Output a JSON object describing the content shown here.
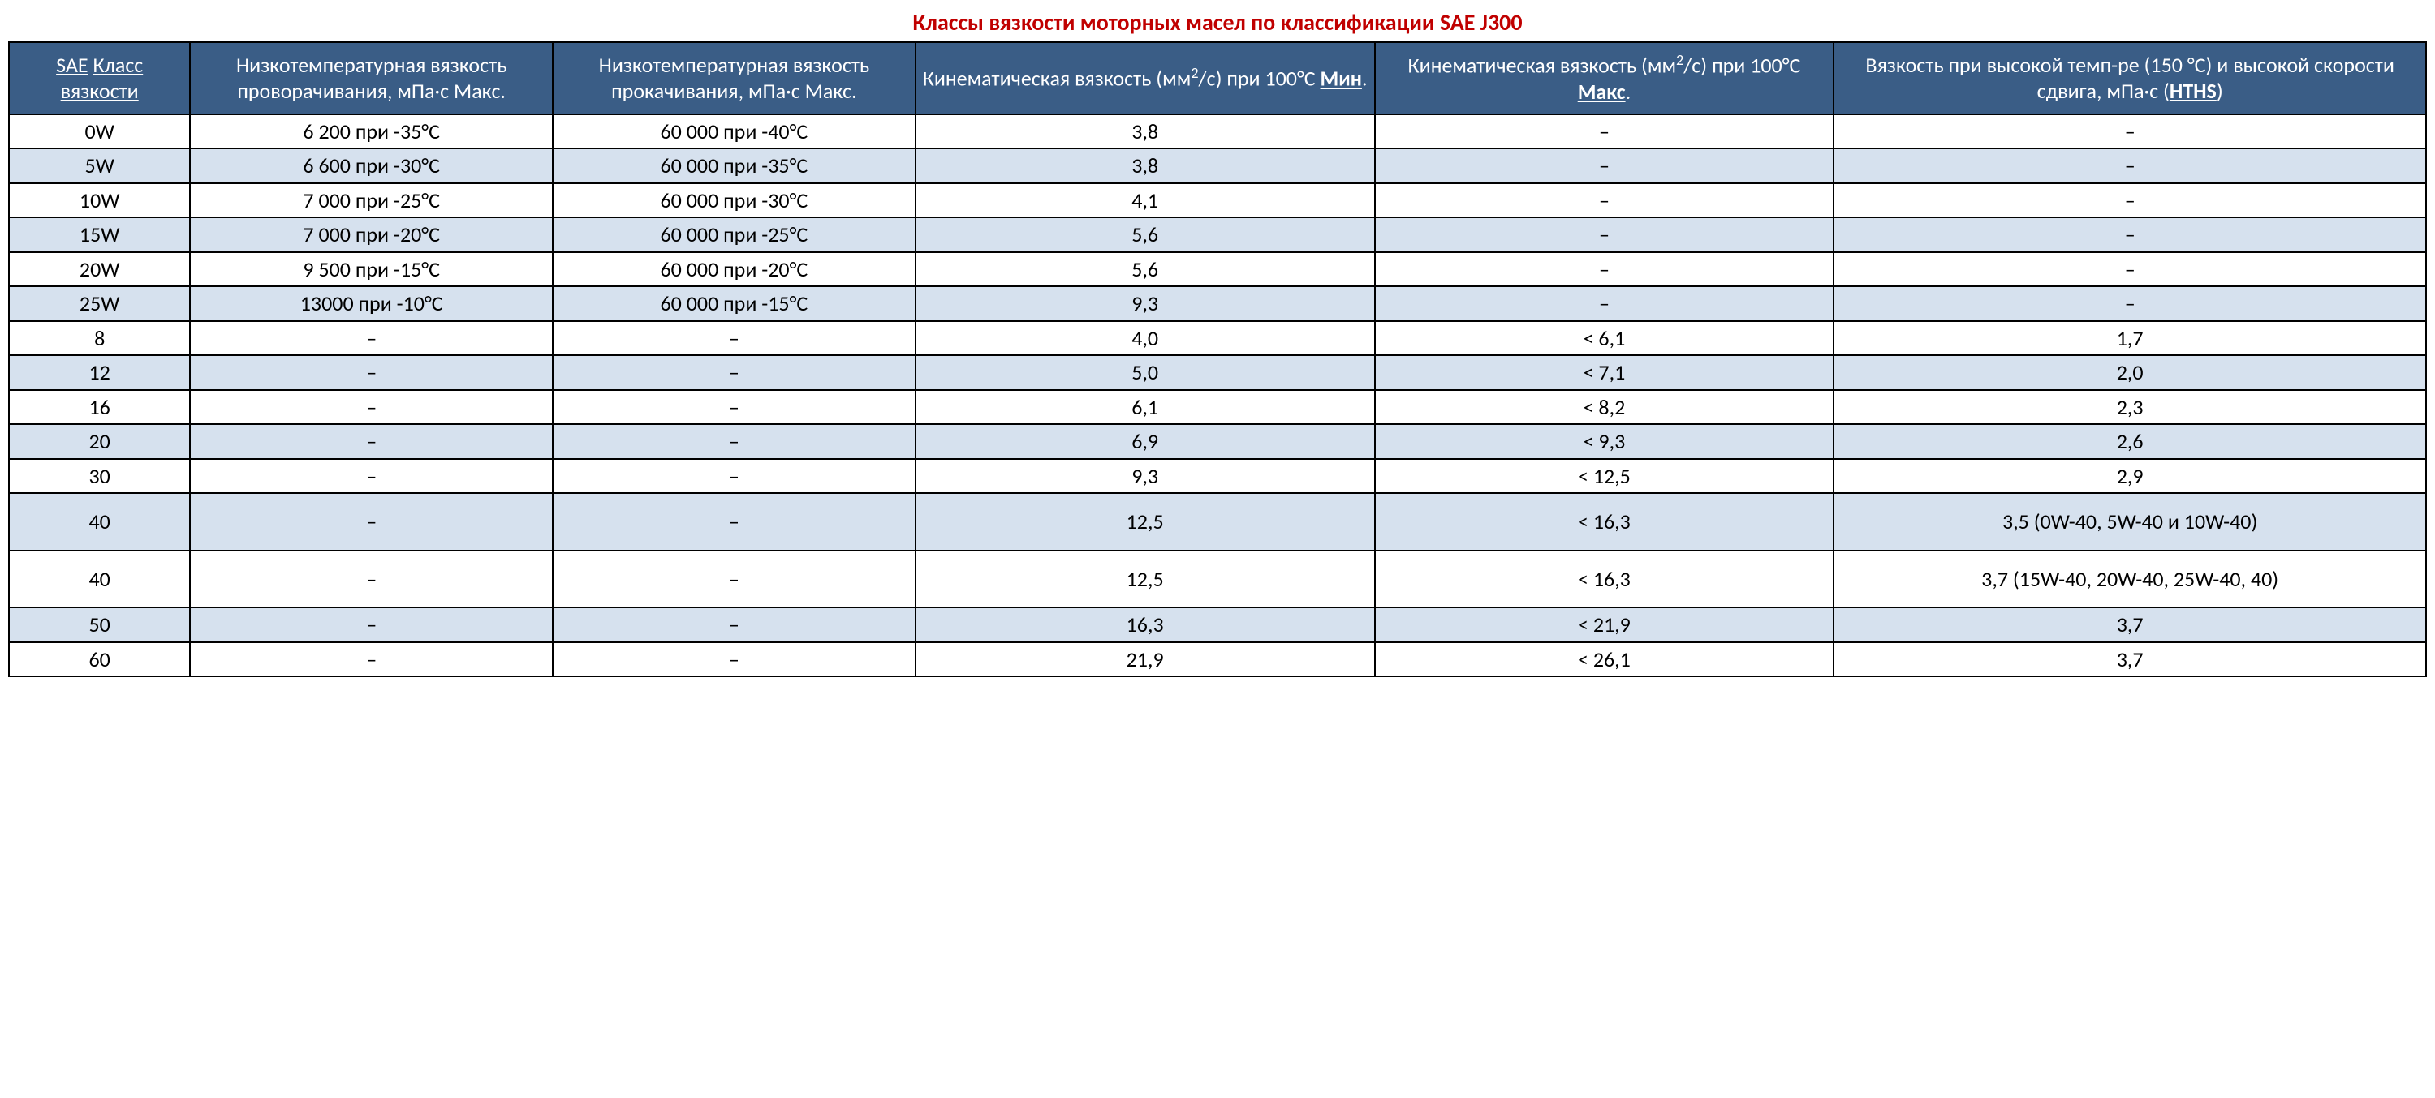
{
  "title": {
    "text": "Классы вязкости моторных масел по классификации SAE J300",
    "color": "#c00000"
  },
  "table": {
    "header_bg": "#3a5d86",
    "header_fg": "#ffffff",
    "row_alt_bg": "#d6e1ee",
    "row_bg": "#ffffff",
    "border_color": "#000000",
    "col_widths_pct": [
      7.5,
      15,
      15,
      19,
      19,
      24.5
    ],
    "columns": [
      {
        "html": "<span class='u'>SAE</span> <span class='u'>Класс</span> <span class='u'>вязкости</span>"
      },
      {
        "html": "Низкотемпературная вязкость проворачивания, мПа·с Макс."
      },
      {
        "html": "Низкотемпературная вязкость прокачивания, мПа·с Макс."
      },
      {
        "html": "Кинематическая вязкость (мм<sup>2</sup>/с) при 100°C <span class='u b'>Мин</span>."
      },
      {
        "html": "Кинематическая вязкость (мм<sup>2</sup>/с) при 100°C <span class='u b'>Макс</span>."
      },
      {
        "html": "Вязкость при высокой темп-ре (150 °C) и высокой скорости сдвига, мПа·с (<span class='u b'>HTHS</span>)"
      }
    ],
    "rows": [
      {
        "alt": false,
        "cells": [
          "0W",
          "6 200 при -35°C",
          "60 000 при -40°C",
          "3,8",
          "–",
          "–"
        ]
      },
      {
        "alt": true,
        "cells": [
          "5W",
          "6 600 при -30°C",
          "60 000 при -35°C",
          "3,8",
          "–",
          "–"
        ]
      },
      {
        "alt": false,
        "cells": [
          "10W",
          "7 000 при -25°C",
          "60 000 при -30°C",
          "4,1",
          "–",
          "–"
        ]
      },
      {
        "alt": true,
        "cells": [
          "15W",
          "7 000 при -20°C",
          "60 000 при -25°C",
          "5,6",
          "–",
          "–"
        ]
      },
      {
        "alt": false,
        "cells": [
          "20W",
          "9 500 при -15°C",
          "60 000 при -20°C",
          "5,6",
          "–",
          "–"
        ]
      },
      {
        "alt": true,
        "cells": [
          "25W",
          "13000 при -10°C",
          "60 000 при -15°C",
          "9,3",
          "–",
          "–"
        ]
      },
      {
        "alt": false,
        "cells": [
          "8",
          "–",
          "–",
          "4,0",
          "< 6,1",
          "1,7"
        ]
      },
      {
        "alt": true,
        "cells": [
          "12",
          "–",
          "–",
          "5,0",
          "< 7,1",
          "2,0"
        ]
      },
      {
        "alt": false,
        "cells": [
          "16",
          "–",
          "–",
          "6,1",
          "< 8,2",
          "2,3"
        ]
      },
      {
        "alt": true,
        "cells": [
          "20",
          "–",
          "–",
          "6,9",
          "< 9,3",
          "2,6"
        ]
      },
      {
        "alt": false,
        "cells": [
          "30",
          "–",
          "–",
          "9,3",
          "< 12,5",
          "2,9"
        ]
      },
      {
        "alt": true,
        "tall": true,
        "cells": [
          "40",
          "–",
          "–",
          "12,5",
          "< 16,3",
          "3,5 (0W-40, 5W-40 и 10W-40)"
        ]
      },
      {
        "alt": false,
        "tall": true,
        "cells": [
          "40",
          "–",
          "–",
          "12,5",
          "< 16,3",
          "3,7 (15W-40, 20W-40, 25W-40, 40)"
        ]
      },
      {
        "alt": true,
        "cells": [
          "50",
          "–",
          "–",
          "16,3",
          "< 21,9",
          "3,7"
        ]
      },
      {
        "alt": false,
        "cells": [
          "60",
          "–",
          "–",
          "21,9",
          "< 26,1",
          "3,7"
        ]
      }
    ]
  }
}
